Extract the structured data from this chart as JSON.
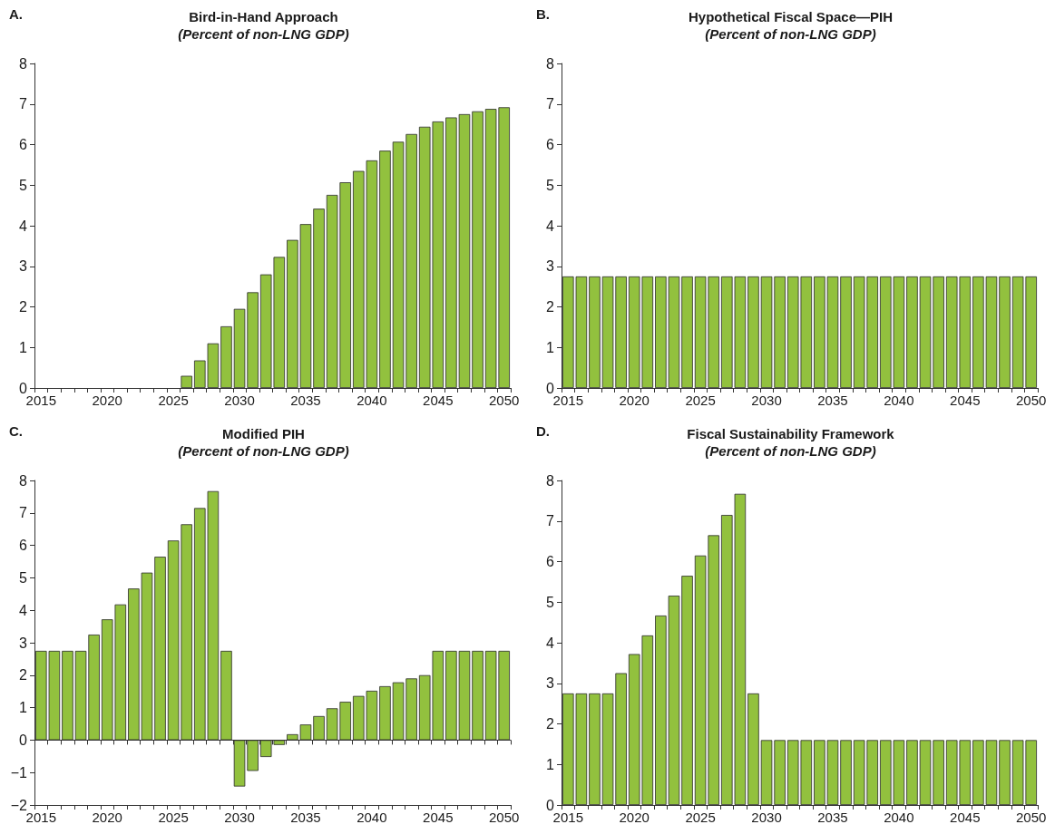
{
  "chart_data": [
    {
      "type": "bar",
      "title": "Bird-in-Hand Approach",
      "subtitle": "(Percent of non-LNG GDP)",
      "annotations": [
        "A."
      ],
      "categories": [
        "2015",
        null,
        null,
        null,
        null,
        "2020",
        null,
        null,
        null,
        null,
        "2025",
        null,
        null,
        null,
        null,
        "2030",
        null,
        null,
        null,
        null,
        "2035",
        null,
        null,
        null,
        null,
        "2040",
        null,
        null,
        null,
        null,
        "2045",
        null,
        null,
        null,
        null,
        "2050"
      ],
      "series": [
        {
          "color": "#92c13e",
          "values": [
            0,
            0,
            0,
            0,
            0,
            0,
            0,
            0,
            0,
            0,
            0,
            0.3,
            0.68,
            1.1,
            1.52,
            1.95,
            2.36,
            2.8,
            3.23,
            3.65,
            4.04,
            4.42,
            4.76,
            5.07,
            5.35,
            5.61,
            5.85,
            6.07,
            6.26,
            6.44,
            6.57,
            6.67,
            6.75,
            6.82,
            6.88,
            6.92
          ]
        }
      ],
      "ylim": [
        0,
        8
      ],
      "yticks": [
        0,
        1,
        2,
        3,
        4,
        5,
        6,
        7,
        8
      ],
      "grid": false
    },
    {
      "type": "bar",
      "title": "Hypothetical Fiscal Space—PIH",
      "subtitle": "(Percent of non-LNG GDP)",
      "annotations": [
        "B."
      ],
      "categories": [
        "2015",
        null,
        null,
        null,
        null,
        "2020",
        null,
        null,
        null,
        null,
        "2025",
        null,
        null,
        null,
        null,
        "2030",
        null,
        null,
        null,
        null,
        "2035",
        null,
        null,
        null,
        null,
        "2040",
        null,
        null,
        null,
        null,
        "2045",
        null,
        null,
        null,
        null,
        "2050"
      ],
      "series": [
        {
          "color": "#92c13e",
          "values": [
            2.75,
            2.75,
            2.75,
            2.75,
            2.75,
            2.75,
            2.75,
            2.75,
            2.75,
            2.75,
            2.75,
            2.75,
            2.75,
            2.75,
            2.75,
            2.75,
            2.75,
            2.75,
            2.75,
            2.75,
            2.75,
            2.75,
            2.75,
            2.75,
            2.75,
            2.75,
            2.75,
            2.75,
            2.75,
            2.75,
            2.75,
            2.75,
            2.75,
            2.75,
            2.75,
            2.75
          ]
        }
      ],
      "ylim": [
        0,
        8
      ],
      "yticks": [
        0,
        1,
        2,
        3,
        4,
        5,
        6,
        7,
        8
      ],
      "grid": false
    },
    {
      "type": "bar",
      "title": "Modified PIH",
      "subtitle": "(Percent of non-LNG GDP)",
      "annotations": [
        "C."
      ],
      "categories": [
        "2015",
        null,
        null,
        null,
        null,
        "2020",
        null,
        null,
        null,
        null,
        "2025",
        null,
        null,
        null,
        null,
        "2030",
        null,
        null,
        null,
        null,
        "2035",
        null,
        null,
        null,
        null,
        "2040",
        null,
        null,
        null,
        null,
        "2045",
        null,
        null,
        null,
        null,
        "2050"
      ],
      "series": [
        {
          "color": "#92c13e",
          "values": [
            2.75,
            2.75,
            2.75,
            2.75,
            3.25,
            3.72,
            4.18,
            4.67,
            5.16,
            5.65,
            6.15,
            6.65,
            7.15,
            7.67,
            2.75,
            -1.43,
            -0.95,
            -0.52,
            -0.15,
            0.18,
            0.48,
            0.74,
            0.98,
            1.18,
            1.36,
            1.52,
            1.66,
            1.78,
            1.9,
            2.0,
            2.75,
            2.75,
            2.75,
            2.75,
            2.75,
            2.75
          ]
        }
      ],
      "ylim": [
        -2,
        8
      ],
      "yticks": [
        {
          "value": -2,
          "label": "−2"
        },
        {
          "value": -1,
          "label": "−1"
        },
        0,
        1,
        2,
        3,
        4,
        5,
        6,
        7,
        8
      ],
      "grid": false,
      "ref_lines": [
        {
          "axis": "y",
          "value": 0,
          "color": "#333333"
        }
      ]
    },
    {
      "type": "bar",
      "title": "Fiscal Sustainability Framework",
      "subtitle": "(Percent of non-LNG GDP)",
      "annotations": [
        "D."
      ],
      "categories": [
        "2015",
        null,
        null,
        null,
        null,
        "2020",
        null,
        null,
        null,
        null,
        "2025",
        null,
        null,
        null,
        null,
        "2030",
        null,
        null,
        null,
        null,
        "2035",
        null,
        null,
        null,
        null,
        "2040",
        null,
        null,
        null,
        null,
        "2045",
        null,
        null,
        null,
        null,
        "2050"
      ],
      "series": [
        {
          "color": "#92c13e",
          "values": [
            2.75,
            2.75,
            2.75,
            2.75,
            3.25,
            3.72,
            4.18,
            4.67,
            5.16,
            5.65,
            6.15,
            6.65,
            7.15,
            7.67,
            2.75,
            1.6,
            1.6,
            1.6,
            1.6,
            1.6,
            1.6,
            1.6,
            1.6,
            1.6,
            1.6,
            1.6,
            1.6,
            1.6,
            1.6,
            1.6,
            1.6,
            1.6,
            1.6,
            1.6,
            1.6,
            1.6
          ]
        }
      ],
      "ylim": [
        0,
        8
      ],
      "yticks": [
        0,
        1,
        2,
        3,
        4,
        5,
        6,
        7,
        8
      ],
      "grid": false
    }
  ]
}
